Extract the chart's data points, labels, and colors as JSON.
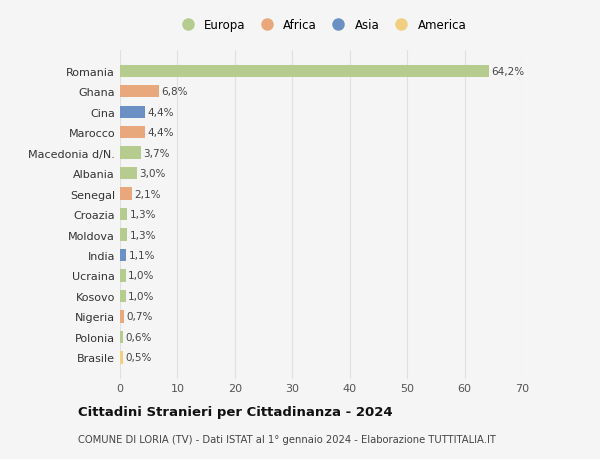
{
  "countries": [
    "Romania",
    "Ghana",
    "Cina",
    "Marocco",
    "Macedonia d/N.",
    "Albania",
    "Senegal",
    "Croazia",
    "Moldova",
    "India",
    "Ucraina",
    "Kosovo",
    "Nigeria",
    "Polonia",
    "Brasile"
  ],
  "values": [
    64.2,
    6.8,
    4.4,
    4.4,
    3.7,
    3.0,
    2.1,
    1.3,
    1.3,
    1.1,
    1.0,
    1.0,
    0.7,
    0.6,
    0.5
  ],
  "labels": [
    "64,2%",
    "6,8%",
    "4,4%",
    "4,4%",
    "3,7%",
    "3,0%",
    "2,1%",
    "1,3%",
    "1,3%",
    "1,1%",
    "1,0%",
    "1,0%",
    "0,7%",
    "0,6%",
    "0,5%"
  ],
  "continents": [
    "Europa",
    "Africa",
    "Asia",
    "Africa",
    "Europa",
    "Europa",
    "Africa",
    "Europa",
    "Europa",
    "Asia",
    "Europa",
    "Europa",
    "Africa",
    "Europa",
    "America"
  ],
  "colors": {
    "Europa": "#b5cc8e",
    "Africa": "#e8a87c",
    "Asia": "#6b90c4",
    "America": "#f0d080"
  },
  "legend_order": [
    "Europa",
    "Africa",
    "Asia",
    "America"
  ],
  "xlim": [
    0,
    70
  ],
  "xticks": [
    0,
    10,
    20,
    30,
    40,
    50,
    60,
    70
  ],
  "title": "Cittadini Stranieri per Cittadinanza - 2024",
  "subtitle": "COMUNE DI LORIA (TV) - Dati ISTAT al 1° gennaio 2024 - Elaborazione TUTTITALIA.IT",
  "bg_color": "#f5f5f5",
  "grid_color": "#e0e0e0",
  "bar_height": 0.6
}
